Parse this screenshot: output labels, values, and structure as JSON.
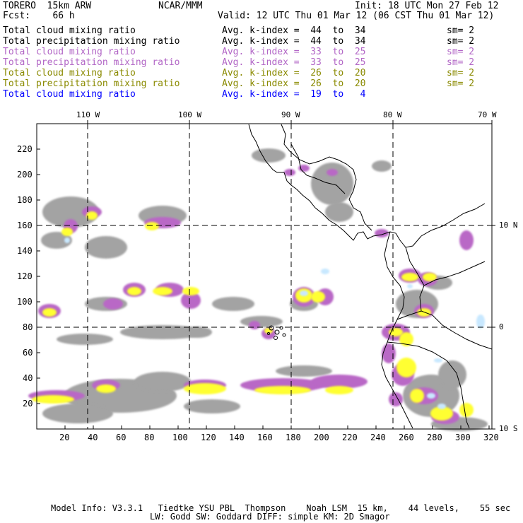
{
  "header": {
    "model": "TORERO  15km ARW",
    "org": "NCAR/MMM",
    "init": "Init: 18 UTC Mon 27 Feb 12",
    "fcst": "Fcst:    66 h",
    "valid": "Valid: 12 UTC Thu 01 Mar 12 (06 CST Thu 01 Mar 12)"
  },
  "legend": [
    {
      "label": "Total cloud mixing ratio",
      "index": "Avg. k-index =  44  to  34",
      "sm": "sm= 2",
      "color": "#000000"
    },
    {
      "label": "Total precipitation mixing ratio",
      "index": "Avg. k-index =  44  to  34",
      "sm": "sm= 2",
      "color": "#000000"
    },
    {
      "label": "Total cloud mixing ratio",
      "index": "Avg. k-index =  33  to  25",
      "sm": "sm= 2",
      "color": "#b266c6"
    },
    {
      "label": "Total precipitation mixing ratio",
      "index": "Avg. k-index =  33  to  25",
      "sm": "sm= 2",
      "color": "#b266c6"
    },
    {
      "label": "Total cloud mixing ratio",
      "index": "Avg. k-index =  26  to  20",
      "sm": "sm= 2",
      "color": "#8a8a00"
    },
    {
      "label": "Total precipitation mixing ratio",
      "index": "Avg. k-index =  26  to  20",
      "sm": "sm= 2",
      "color": "#8a8a00"
    },
    {
      "label": "Total cloud mixing ratio",
      "index": "Avg. k-index =  19  to   4",
      "sm": "",
      "color": "#0000ff"
    }
  ],
  "map": {
    "x_ticks": [
      "20",
      "40",
      "60",
      "80",
      "100",
      "120",
      "140",
      "160",
      "180",
      "200",
      "220",
      "240",
      "260",
      "280",
      "300",
      "320"
    ],
    "y_ticks": [
      "20",
      "40",
      "60",
      "80",
      "100",
      "120",
      "140",
      "160",
      "180",
      "200",
      "220"
    ],
    "lon_labels": [
      "110 W",
      "100 W",
      "90 W",
      "80 W",
      "70 W"
    ],
    "lat_labels": [
      "10 N",
      "0",
      "10 S"
    ],
    "colors": {
      "high_cloud": "#a3a3a3",
      "mid_cloud": "#b967c6",
      "low_cloud": "#ffff33",
      "cold_core": "#c8e8ff",
      "coast": "#000000"
    }
  },
  "footer": {
    "line1": "Model Info: V3.3.1   Tiedtke YSU PBL  Thompson    Noah LSM  15 km,    44 levels,    55 sec",
    "line2": "LW: Godd SW: Goddard DIFF: simple KM: 2D Smagor"
  }
}
